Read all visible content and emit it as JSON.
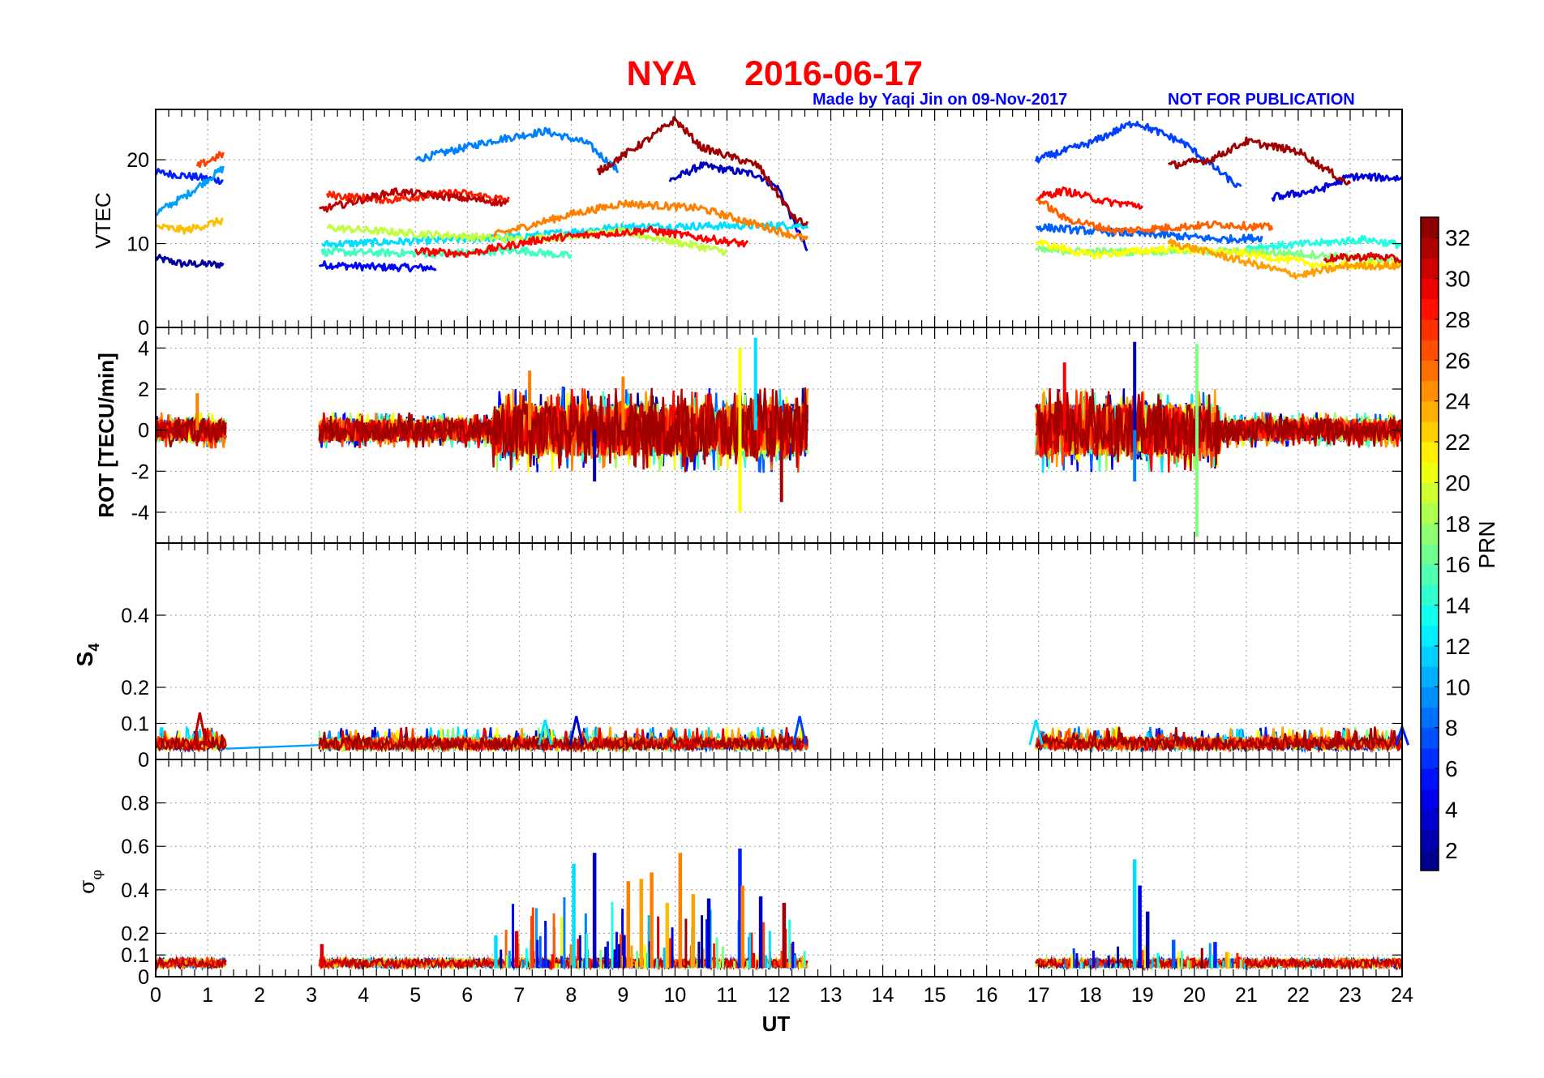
{
  "title": {
    "station": "NYA",
    "date": "2016-06-17",
    "credit": "Made by Yaqi Jin on 09-Nov-2017",
    "notice": "NOT FOR PUBLICATION"
  },
  "colors": {
    "title": "#ff0000",
    "credit": "#0000ff",
    "grid": "#888888",
    "axis": "#000000"
  },
  "chart_data": [
    {
      "type": "line",
      "name": "vtec-panel",
      "ylabel": "VTEC",
      "ylim": [
        0,
        26
      ],
      "yticks": [
        0,
        10,
        20
      ],
      "xlim": [
        0,
        24
      ],
      "x_data_windows": [
        [
          0,
          1.35
        ],
        [
          3.15,
          12.55
        ],
        [
          16.95,
          24
        ]
      ],
      "series": [
        {
          "name": "PRN 2",
          "prn": 2,
          "points": [
            [
              0,
              8.3
            ],
            [
              0.5,
              7.6
            ],
            [
              1.3,
              7.5
            ]
          ]
        },
        {
          "name": "PRN 5",
          "prn": 5,
          "points": [
            [
              3.15,
              7.5
            ],
            [
              4.2,
              7.2
            ],
            [
              5.4,
              7.1
            ]
          ]
        },
        {
          "name": "PRN 6",
          "prn": 6,
          "points": [
            [
              0,
              18.5
            ],
            [
              0.7,
              18.0
            ],
            [
              1.3,
              17.5
            ]
          ]
        },
        {
          "name": "PRN 3",
          "prn": 3,
          "points": [
            [
              9.9,
              17.5
            ],
            [
              10.5,
              19.3
            ],
            [
              11.6,
              18.2
            ],
            [
              12.0,
              16.5
            ],
            [
              12.55,
              9.0
            ]
          ]
        },
        {
          "name": "PRN 9",
          "prn": 9,
          "points": [
            [
              5.0,
              20.0
            ],
            [
              6.5,
              22.3
            ],
            [
              7.5,
              23.4
            ],
            [
              8.3,
              22.0
            ],
            [
              8.9,
              18.7
            ]
          ]
        },
        {
          "name": "PRN 10",
          "prn": 10,
          "points": [
            [
              0,
              13.6
            ],
            [
              0.6,
              15.8
            ],
            [
              1.3,
              19.0
            ]
          ]
        },
        {
          "name": "PRN 12",
          "prn": 12,
          "points": [
            [
              3.2,
              9.9
            ],
            [
              5.0,
              10.3
            ],
            [
              7.0,
              10.8
            ],
            [
              9.0,
              12.0
            ],
            [
              12.55,
              12.2
            ]
          ]
        },
        {
          "name": "PRN 15",
          "prn": 15,
          "points": [
            [
              3.2,
              9.0
            ],
            [
              5.5,
              8.8
            ],
            [
              7.0,
              9.2
            ],
            [
              8.0,
              8.5
            ]
          ]
        },
        {
          "name": "PRN 19",
          "prn": 19,
          "points": [
            [
              3.3,
              11.9
            ],
            [
              5.0,
              11.2
            ],
            [
              7.0,
              10.5
            ],
            [
              9.0,
              11.4
            ],
            [
              11.0,
              9.0
            ]
          ]
        },
        {
          "name": "PRN 23",
          "prn": 23,
          "points": [
            [
              0,
              12.0
            ],
            [
              0.6,
              11.6
            ],
            [
              1.3,
              12.8
            ]
          ]
        },
        {
          "name": "PRN 25",
          "prn": 25,
          "points": [
            [
              6.5,
              11.0
            ],
            [
              8.0,
              13.5
            ],
            [
              9.0,
              14.8
            ],
            [
              10.5,
              14.2
            ],
            [
              12.55,
              10.5
            ]
          ]
        },
        {
          "name": "PRN 27",
          "prn": 27,
          "points": [
            [
              0.8,
              19.2
            ],
            [
              1.3,
              20.7
            ]
          ]
        },
        {
          "name": "PRN 28",
          "prn": 28,
          "points": [
            [
              3.3,
              15.8
            ],
            [
              4.5,
              15.2
            ],
            [
              5.8,
              16.1
            ],
            [
              6.8,
              15.2
            ]
          ]
        },
        {
          "name": "PRN 29",
          "prn": 29,
          "points": [
            [
              5.0,
              9.1
            ],
            [
              6.0,
              8.8
            ],
            [
              7.5,
              10.6
            ],
            [
              9.5,
              11.6
            ],
            [
              11.4,
              9.9
            ]
          ]
        },
        {
          "name": "PRN 31",
          "prn": 31,
          "points": [
            [
              3.15,
              14.0
            ],
            [
              4.6,
              16.2
            ],
            [
              5.8,
              15.5
            ],
            [
              6.8,
              14.8
            ]
          ]
        },
        {
          "name": "PRN 32",
          "prn": 32,
          "points": [
            [
              8.5,
              18.5
            ],
            [
              9.5,
              22.5
            ],
            [
              10.0,
              24.8
            ],
            [
              10.5,
              21.5
            ],
            [
              11.6,
              19.3
            ],
            [
              12.3,
              13.0
            ],
            [
              12.55,
              12.2
            ]
          ]
        },
        {
          "name": "PRN 7",
          "prn": 7,
          "points": [
            [
              16.95,
              20.0
            ],
            [
              18.0,
              22.0
            ],
            [
              18.85,
              24.5
            ],
            [
              19.8,
              22.0
            ],
            [
              20.9,
              16.5
            ]
          ]
        },
        {
          "name": "PRN 4",
          "prn": 4,
          "points": [
            [
              21.5,
              15.5
            ],
            [
              22.4,
              16.4
            ],
            [
              23.0,
              18.0
            ],
            [
              24.0,
              17.8
            ]
          ]
        },
        {
          "name": "PRN 8",
          "prn": 8,
          "points": [
            [
              16.95,
              12.0
            ],
            [
              18.0,
              11.5
            ],
            [
              19.5,
              11.0
            ],
            [
              20.5,
              10.5
            ],
            [
              21.3,
              10.7
            ]
          ]
        },
        {
          "name": "PRN 14",
          "prn": 14,
          "points": [
            [
              21.0,
              9.5
            ],
            [
              22.5,
              10.1
            ],
            [
              23.3,
              10.5
            ],
            [
              24.0,
              9.8
            ]
          ]
        },
        {
          "name": "PRN 17",
          "prn": 17,
          "points": [
            [
              16.95,
              9.2
            ],
            [
              18.5,
              9.0
            ],
            [
              20.0,
              9.2
            ],
            [
              22.0,
              8.8
            ],
            [
              24.0,
              7.9
            ]
          ]
        },
        {
          "name": "PRN 21",
          "prn": 21,
          "points": [
            [
              16.95,
              10.2
            ],
            [
              18.0,
              8.6
            ],
            [
              19.5,
              9.4
            ],
            [
              21.0,
              8.8
            ],
            [
              22.5,
              7.4
            ],
            [
              24.0,
              7.5
            ]
          ]
        },
        {
          "name": "PRN 24",
          "prn": 24,
          "points": [
            [
              19.5,
              10.2
            ],
            [
              21.0,
              7.8
            ],
            [
              22.0,
              6.2
            ],
            [
              23.0,
              7.4
            ],
            [
              24.0,
              7.3
            ]
          ]
        },
        {
          "name": "PRN 26",
          "prn": 26,
          "points": [
            [
              16.95,
              15.5
            ],
            [
              17.5,
              13.0
            ],
            [
              18.5,
              11.5
            ],
            [
              20.5,
              12.3
            ],
            [
              21.5,
              11.9
            ]
          ]
        },
        {
          "name": "PRN 29b",
          "prn": 29,
          "points": [
            [
              17.0,
              15.6
            ],
            [
              17.5,
              16.3
            ],
            [
              18.3,
              15.0
            ],
            [
              19.0,
              14.5
            ]
          ]
        },
        {
          "name": "PRN 32b",
          "prn": 32,
          "points": [
            [
              19.5,
              19.3
            ],
            [
              20.3,
              20.0
            ],
            [
              21.0,
              22.2
            ],
            [
              22.0,
              21.0
            ],
            [
              23.0,
              17.0
            ]
          ]
        },
        {
          "name": "PRN 30",
          "prn": 30,
          "points": [
            [
              22.5,
              8.2
            ],
            [
              23.5,
              8.5
            ],
            [
              24.0,
              8.0
            ]
          ]
        }
      ]
    },
    {
      "type": "line",
      "name": "rot-panel",
      "ylabel": "ROT [TECU/min]",
      "ylim": [
        -5.5,
        5
      ],
      "yticks": [
        -4,
        -2,
        0,
        2,
        4
      ],
      "xlim": [
        0,
        24
      ],
      "x_data_windows": [
        [
          0,
          1.35
        ],
        [
          3.15,
          12.55
        ],
        [
          16.95,
          24
        ]
      ],
      "notable_spikes": [
        {
          "x": 0.8,
          "y": 1.8,
          "prn": 25
        },
        {
          "x": 7.2,
          "y": 2.9,
          "prn": 25
        },
        {
          "x": 8.45,
          "y": -2.5,
          "prn": 3
        },
        {
          "x": 9.0,
          "y": 2.6,
          "prn": 25
        },
        {
          "x": 11.25,
          "y": -4.0,
          "prn": 21
        },
        {
          "x": 11.25,
          "y": 4.0,
          "prn": 21
        },
        {
          "x": 11.55,
          "y": 4.5,
          "prn": 12
        },
        {
          "x": 12.05,
          "y": -3.5,
          "prn": 32
        },
        {
          "x": 17.5,
          "y": 3.3,
          "prn": 29
        },
        {
          "x": 18.85,
          "y": 4.3,
          "prn": 3
        },
        {
          "x": 18.85,
          "y": -2.5,
          "prn": 9
        },
        {
          "x": 20.05,
          "y": 4.2,
          "prn": 17
        },
        {
          "x": 20.05,
          "y": -5.2,
          "prn": 17
        }
      ]
    },
    {
      "type": "line",
      "name": "s4-panel",
      "ylabel": "S4",
      "ylim": [
        0,
        0.6
      ],
      "yticks": [
        0,
        0.1,
        0.2,
        0.4
      ],
      "xlim": [
        0,
        24
      ],
      "x_data_windows": [
        [
          0,
          1.35
        ],
        [
          3.15,
          12.55
        ],
        [
          16.95,
          24
        ]
      ],
      "baseline": 0.04,
      "notable_spikes": [
        {
          "x": 0.85,
          "y": 0.13,
          "prn": 31
        },
        {
          "x": 7.5,
          "y": 0.11,
          "prn": 12
        },
        {
          "x": 8.1,
          "y": 0.12,
          "prn": 3
        },
        {
          "x": 12.4,
          "y": 0.12,
          "prn": 7
        },
        {
          "x": 16.95,
          "y": 0.11,
          "prn": 12
        },
        {
          "x": 24.0,
          "y": 0.09,
          "prn": 6
        }
      ]
    },
    {
      "type": "bar",
      "name": "sigma-phi-panel",
      "ylabel": "σφ",
      "ylim": [
        0,
        1
      ],
      "yticks": [
        0,
        0.1,
        0.2,
        0.4,
        0.6,
        0.8
      ],
      "xlim": [
        0,
        24
      ],
      "x_data_windows": [
        [
          0,
          1.35
        ],
        [
          3.15,
          12.55
        ],
        [
          16.95,
          24
        ]
      ],
      "baseline": 0.06,
      "spikes": [
        {
          "x": 3.2,
          "y": 0.15,
          "prn": 30
        },
        {
          "x": 6.55,
          "y": 0.19,
          "prn": 12
        },
        {
          "x": 6.95,
          "y": 0.21,
          "prn": 30
        },
        {
          "x": 7.25,
          "y": 0.28,
          "prn": 27
        },
        {
          "x": 8.05,
          "y": 0.52,
          "prn": 12
        },
        {
          "x": 8.45,
          "y": 0.57,
          "prn": 3
        },
        {
          "x": 9.1,
          "y": 0.44,
          "prn": 25
        },
        {
          "x": 9.35,
          "y": 0.45,
          "prn": 24
        },
        {
          "x": 9.55,
          "y": 0.48,
          "prn": 25
        },
        {
          "x": 9.85,
          "y": 0.34,
          "prn": 23
        },
        {
          "x": 10.1,
          "y": 0.57,
          "prn": 25
        },
        {
          "x": 10.35,
          "y": 0.38,
          "prn": 24
        },
        {
          "x": 10.65,
          "y": 0.36,
          "prn": 3
        },
        {
          "x": 11.25,
          "y": 0.59,
          "prn": 6
        },
        {
          "x": 11.3,
          "y": 0.42,
          "prn": 25
        },
        {
          "x": 11.65,
          "y": 0.37,
          "prn": 3
        },
        {
          "x": 12.1,
          "y": 0.34,
          "prn": 32
        },
        {
          "x": 18.85,
          "y": 0.54,
          "prn": 12
        },
        {
          "x": 18.95,
          "y": 0.42,
          "prn": 4
        },
        {
          "x": 19.1,
          "y": 0.3,
          "prn": 3
        },
        {
          "x": 19.6,
          "y": 0.17,
          "prn": 8
        },
        {
          "x": 20.4,
          "y": 0.16,
          "prn": 6
        }
      ]
    }
  ],
  "x_axis": {
    "label": "UT",
    "ticks": [
      "0",
      "1",
      "2",
      "3",
      "4",
      "5",
      "6",
      "7",
      "8",
      "9",
      "10",
      "11",
      "12",
      "13",
      "14",
      "15",
      "16",
      "17",
      "18",
      "19",
      "20",
      "21",
      "22",
      "23",
      "24"
    ]
  },
  "colorbar": {
    "label": "PRN",
    "range": [
      1,
      33
    ],
    "ticks": [
      "2",
      "4",
      "6",
      "8",
      "10",
      "12",
      "14",
      "16",
      "18",
      "20",
      "22",
      "24",
      "26",
      "28",
      "30",
      "32"
    ],
    "colormap": "jet"
  }
}
